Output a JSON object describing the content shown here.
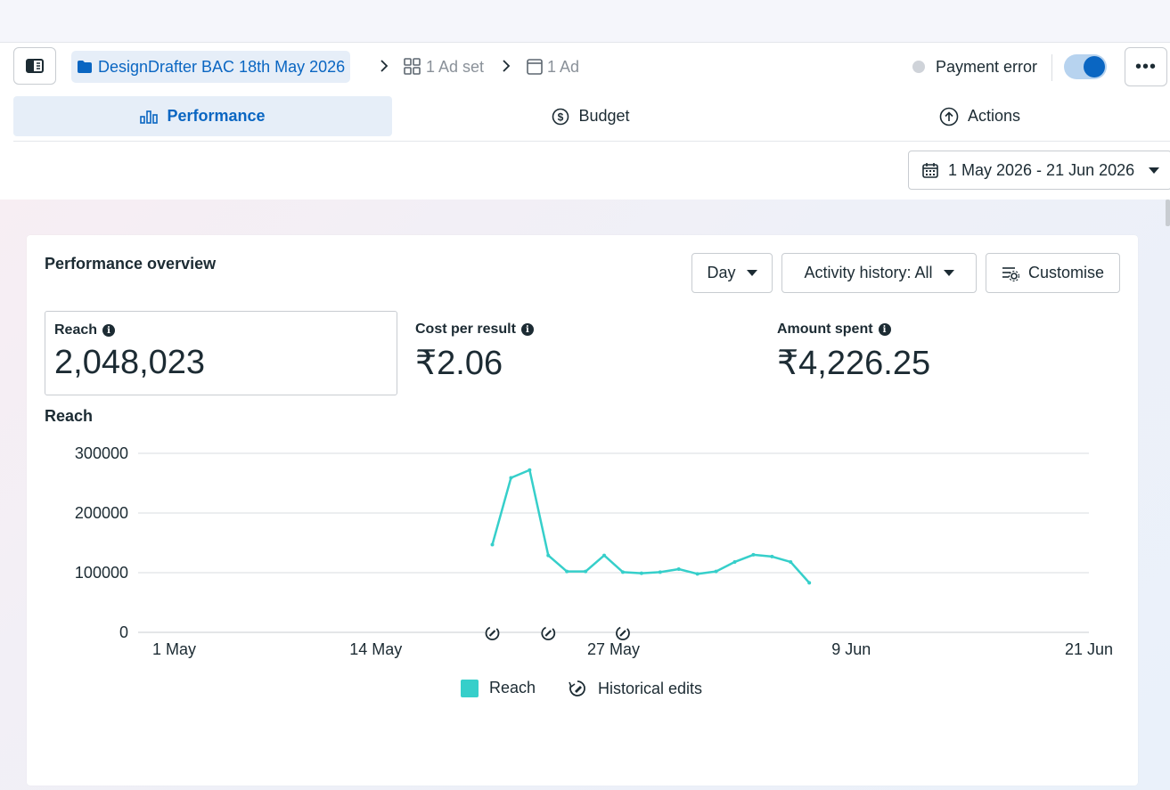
{
  "breadcrumb": {
    "campaign": "DesignDrafter BAC 18th May 2026",
    "adset": "1 Ad set",
    "ad": "1 Ad"
  },
  "status": {
    "label": "Payment error",
    "toggle_on": true
  },
  "tabs": [
    {
      "label": "Performance",
      "icon": "bar-chart-icon",
      "active": true
    },
    {
      "label": "Budget",
      "icon": "dollar-circle-icon",
      "active": false
    },
    {
      "label": "Actions",
      "icon": "arrow-up-circle-icon",
      "active": false
    }
  ],
  "date_range": "1 May 2026 - 21 Jun 2026",
  "overview": {
    "title": "Performance overview",
    "granularity": "Day",
    "activity_history": "Activity history: All",
    "customise": "Customise",
    "metrics": [
      {
        "label": "Reach",
        "value": "2,048,023"
      },
      {
        "label": "Cost per result",
        "value": "₹2.06"
      },
      {
        "label": "Amount spent",
        "value": "₹4,226.25"
      }
    ]
  },
  "chart_data": {
    "type": "line",
    "title": "Reach",
    "x_ticks": [
      "1 May",
      "14 May",
      "27 May",
      "9 Jun",
      "21 Jun"
    ],
    "y_ticks": [
      "0",
      "100000",
      "200000",
      "300000"
    ],
    "ylim": [
      0,
      300000
    ],
    "series": [
      {
        "name": "Reach",
        "color": "#36cfca",
        "x": [
          "2026-05-20",
          "2026-05-21",
          "2026-05-22",
          "2026-05-23",
          "2026-05-24",
          "2026-05-25",
          "2026-05-26",
          "2026-05-27",
          "2026-05-28",
          "2026-05-29",
          "2026-05-30",
          "2026-05-31",
          "2026-06-01",
          "2026-06-02",
          "2026-06-03",
          "2026-06-04",
          "2026-06-05",
          "2026-06-06"
        ],
        "values": [
          147000,
          259000,
          272000,
          129000,
          102000,
          102000,
          129000,
          101000,
          99000,
          101000,
          106000,
          98000,
          102000,
          118000,
          130000,
          127000,
          118000,
          83000
        ]
      }
    ],
    "historical_edits": [
      "2026-05-20",
      "2026-05-23",
      "2026-05-27"
    ],
    "legend": [
      {
        "label": "Reach",
        "kind": "swatch"
      },
      {
        "label": "Historical edits",
        "kind": "edit-icon"
      }
    ],
    "grid": true,
    "legend_position": "bottom"
  }
}
